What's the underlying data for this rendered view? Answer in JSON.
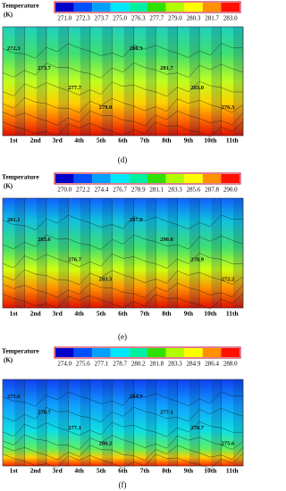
{
  "panels": [
    {
      "legend_title": "Temperature",
      "legend_unit": "(K)",
      "legend_ticks": [
        "271.0",
        "272.3",
        "273.7",
        "275.0",
        "276.3",
        "277.7",
        "279.0",
        "280.3",
        "281.7",
        "283.0"
      ],
      "contour_labels": [
        "272.3",
        "273.7",
        "277.7",
        "279.0",
        "280.3",
        "281.7",
        "283.0",
        "276.3"
      ],
      "columns": [
        "1st",
        "2nd",
        "3rd",
        "4th",
        "5th",
        "6th",
        "7th",
        "8th",
        "9th",
        "10th",
        "11th"
      ],
      "caption": "(d)"
    },
    {
      "legend_title": "Temperature",
      "legend_unit": "(K)",
      "legend_ticks": [
        "270.0",
        "272.2",
        "274.4",
        "276.7",
        "278.9",
        "281.1",
        "283.3",
        "285.6",
        "287.8",
        "290.0"
      ],
      "contour_labels": [
        "281.1",
        "285.6",
        "276.7",
        "283.3",
        "287.8",
        "290.0",
        "278.9",
        "272.2"
      ],
      "columns": [
        "1st",
        "2nd",
        "3rd",
        "4th",
        "5th",
        "6th",
        "7th",
        "8th",
        "9th",
        "10th",
        "11th"
      ],
      "caption": "(e)"
    },
    {
      "legend_title": "Temperature",
      "legend_unit": "(K)",
      "legend_ticks": [
        "274.0",
        "275.6",
        "277.1",
        "278.7",
        "280.2",
        "281.8",
        "283.3",
        "284.9",
        "286.4",
        "288.0"
      ],
      "contour_labels": [
        "275.6",
        "278.7",
        "277.1",
        "280.2",
        "284.9",
        "277.1",
        "278.7",
        "275.6"
      ],
      "columns": [
        "1st",
        "2nd",
        "3rd",
        "4th",
        "5th",
        "6th",
        "7th",
        "8th",
        "9th",
        "10th",
        "11th"
      ],
      "caption": "(f)"
    }
  ]
}
